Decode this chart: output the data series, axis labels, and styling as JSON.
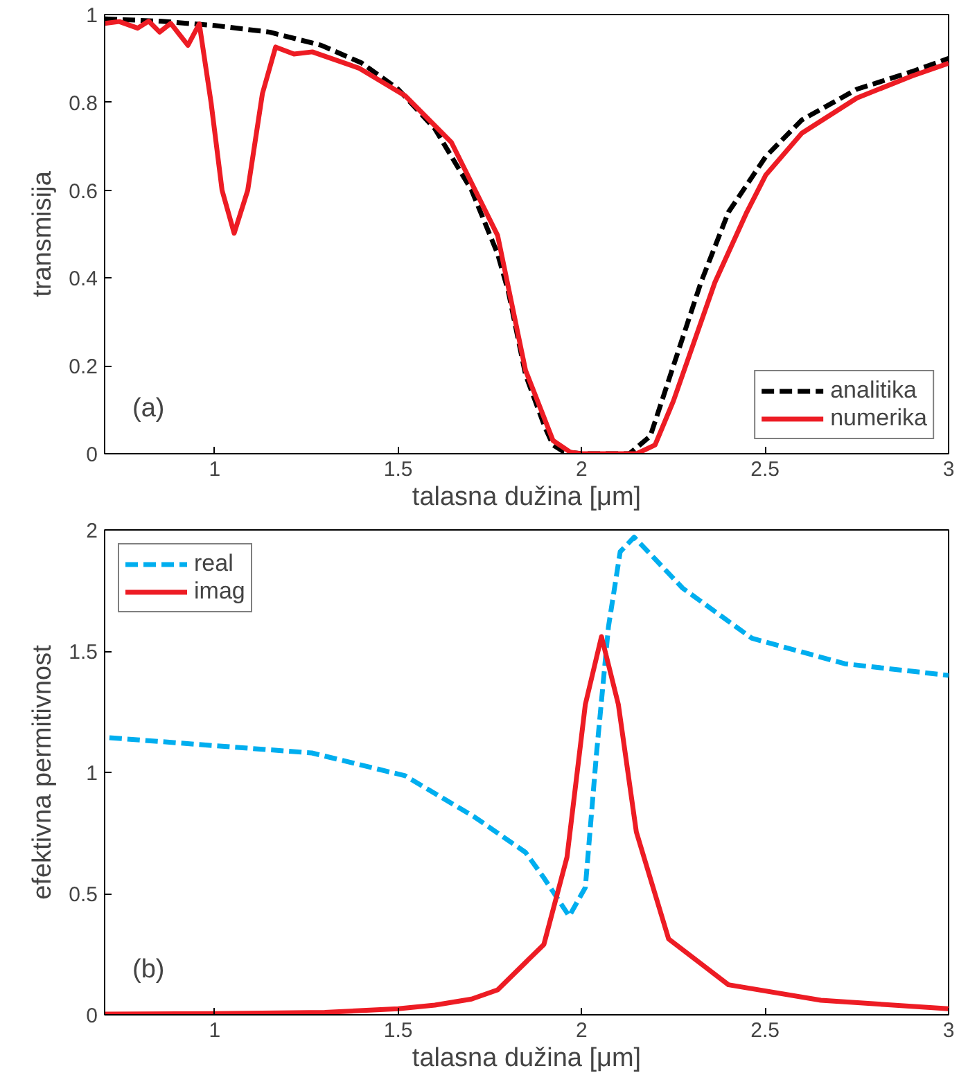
{
  "chart_data": [
    {
      "type": "line",
      "xlabel": "talasna dužina [μm]",
      "ylabel": "transmisija",
      "annotations": [
        "(a)"
      ],
      "xlim": [
        0.7,
        3
      ],
      "ylim": [
        0,
        1
      ],
      "xticks": [
        1,
        1.5,
        2,
        2.5,
        3
      ],
      "yticks": [
        0,
        0.2,
        0.4,
        0.6,
        0.8,
        1
      ],
      "grid": false,
      "legend": "bottom right",
      "series": [
        {
          "name": "analitika",
          "color": "#000000",
          "line_style": "dashed",
          "x": [
            0.7,
            0.85,
            1.0,
            1.15,
            1.29,
            1.4,
            1.5,
            1.6,
            1.7,
            1.771,
            1.8,
            1.847,
            1.9,
            1.922,
            1.95,
            2.0,
            2.13,
            2.187,
            2.25,
            2.325,
            2.4,
            2.502,
            2.6,
            2.75,
            2.9,
            3.0
          ],
          "values": [
            0.99,
            0.985,
            0.975,
            0.96,
            0.93,
            0.89,
            0.83,
            0.74,
            0.6,
            0.455,
            0.37,
            0.18,
            0.06,
            0.02,
            0.005,
            0,
            0,
            0.04,
            0.2,
            0.39,
            0.55,
            0.677,
            0.76,
            0.83,
            0.87,
            0.9
          ]
        },
        {
          "name": "numerika",
          "color": "#ed1c24",
          "line_style": "solid",
          "x": [
            0.7,
            0.74,
            0.79,
            0.82,
            0.85,
            0.88,
            0.927,
            0.958,
            0.99,
            1.02,
            1.053,
            1.09,
            1.13,
            1.166,
            1.216,
            1.266,
            1.393,
            1.519,
            1.645,
            1.771,
            1.847,
            1.922,
            1.97,
            2.0,
            2.15,
            2.2,
            2.25,
            2.363,
            2.45,
            2.502,
            2.6,
            2.75,
            2.9,
            3.0
          ],
          "values": [
            0.98,
            0.984,
            0.969,
            0.985,
            0.96,
            0.98,
            0.93,
            0.979,
            0.8,
            0.6,
            0.502,
            0.6,
            0.82,
            0.926,
            0.91,
            0.915,
            0.878,
            0.815,
            0.709,
            0.497,
            0.19,
            0.03,
            0.003,
            0,
            0,
            0.02,
            0.12,
            0.39,
            0.55,
            0.635,
            0.73,
            0.81,
            0.86,
            0.889
          ]
        }
      ]
    },
    {
      "type": "line",
      "xlabel": "talasna dužina [μm]",
      "ylabel": "efektivna permitivnost",
      "annotations": [
        "(b)"
      ],
      "xlim": [
        0.7,
        3
      ],
      "ylim": [
        0,
        2
      ],
      "xticks": [
        1,
        1.5,
        2,
        2.5,
        3
      ],
      "yticks": [
        0,
        0.5,
        1,
        1.5,
        2
      ],
      "grid": false,
      "legend": "top left",
      "series": [
        {
          "name": "real",
          "color": "#00aeef",
          "line_style": "dashed",
          "x": [
            0.713,
            1.0,
            1.265,
            1.519,
            1.707,
            1.847,
            1.897,
            1.966,
            2.01,
            2.04,
            2.073,
            2.105,
            2.143,
            2.2,
            2.275,
            2.464,
            2.717,
            3.0
          ],
          "values": [
            1.143,
            1.11,
            1.08,
            0.986,
            0.817,
            0.67,
            0.565,
            0.407,
            0.525,
            1.07,
            1.6,
            1.91,
            1.97,
            1.88,
            1.76,
            1.553,
            1.448,
            1.4
          ]
        },
        {
          "name": "imag",
          "color": "#ed1c24",
          "line_style": "solid",
          "x": [
            0.7,
            1.0,
            1.3,
            1.5,
            1.6,
            1.7,
            1.771,
            1.897,
            1.96,
            2.01,
            2.054,
            2.1,
            2.149,
            2.237,
            2.4,
            2.652,
            3.0
          ],
          "values": [
            0.003,
            0.005,
            0.01,
            0.025,
            0.04,
            0.065,
            0.103,
            0.29,
            0.65,
            1.28,
            1.56,
            1.28,
            0.754,
            0.313,
            0.124,
            0.06,
            0.025
          ]
        }
      ]
    }
  ]
}
